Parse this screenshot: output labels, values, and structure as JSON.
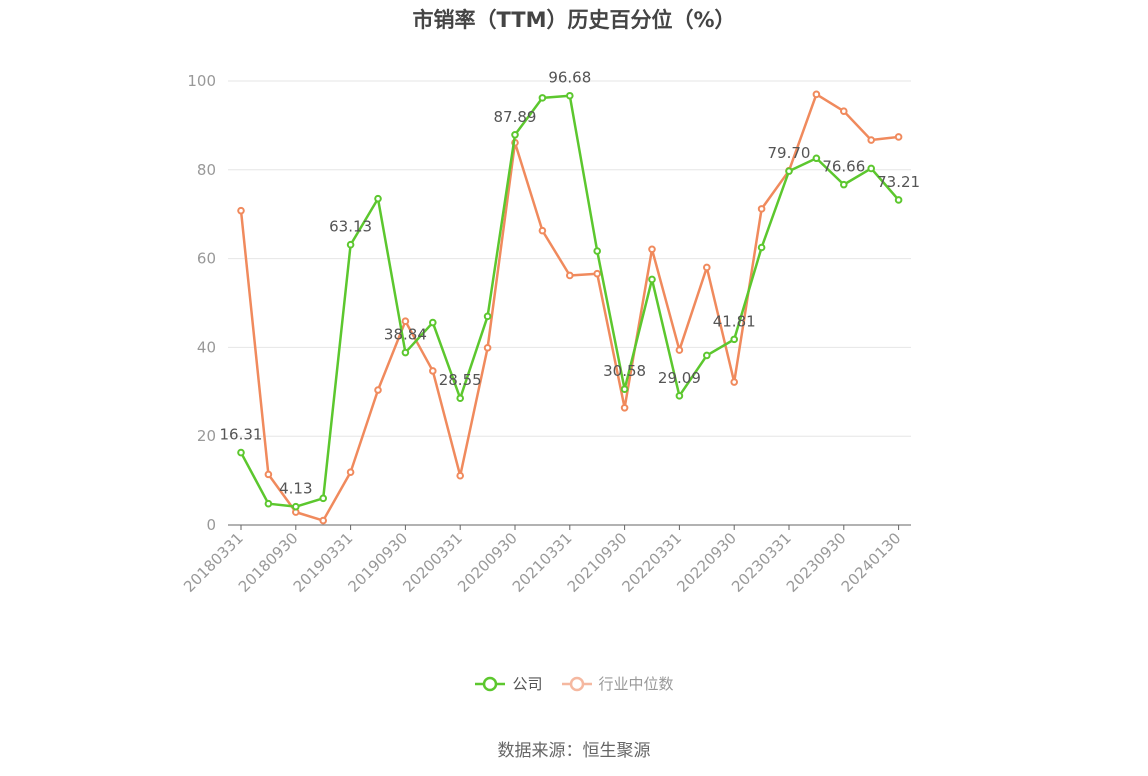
{
  "chart_data": {
    "type": "line",
    "title": "市销率（TTM）历史百分位（%）",
    "ylim": [
      0,
      100
    ],
    "yticks": [
      "0",
      "20",
      "40",
      "60",
      "80",
      "100"
    ],
    "xtick_labels": [
      "20180331",
      "20180930",
      "20190331",
      "20190930",
      "20200331",
      "20200930",
      "20210331",
      "20210930",
      "20220331",
      "20220930",
      "20230331",
      "20230930",
      "20240130"
    ],
    "series": [
      {
        "name": "公司",
        "color": "#5cc72e",
        "values": [
          16.31,
          4.8,
          4.13,
          6.0,
          63.13,
          73.5,
          38.84,
          45.6,
          28.55,
          47.0,
          87.89,
          96.2,
          96.68,
          61.7,
          30.58,
          55.3,
          29.09,
          38.2,
          41.81,
          62.5,
          79.7,
          82.6,
          76.66,
          80.3,
          73.21
        ]
      },
      {
        "name": "行业中位数",
        "color": "#f08a5d",
        "values": [
          70.8,
          11.4,
          2.9,
          1.0,
          11.9,
          30.4,
          45.9,
          34.7,
          11.1,
          39.9,
          86.1,
          66.3,
          56.2,
          56.6,
          26.4,
          62.1,
          39.4,
          58.0,
          32.2,
          71.2,
          79.8,
          97.0,
          93.2,
          86.7,
          87.4
        ]
      }
    ],
    "data_labels": [
      {
        "index": 0,
        "text": "16.31"
      },
      {
        "index": 2,
        "text": "4.13"
      },
      {
        "index": 4,
        "text": "63.13"
      },
      {
        "index": 6,
        "text": "38.84"
      },
      {
        "index": 8,
        "text": "28.55"
      },
      {
        "index": 10,
        "text": "87.89"
      },
      {
        "index": 12,
        "text": "96.68"
      },
      {
        "index": 14,
        "text": "30.58"
      },
      {
        "index": 16,
        "text": "29.09"
      },
      {
        "index": 18,
        "text": "41.81"
      },
      {
        "index": 20,
        "text": "79.70"
      },
      {
        "index": 22,
        "text": "76.66"
      },
      {
        "index": 24,
        "text": "73.21"
      }
    ],
    "grid": true,
    "legend_position": "bottom-center"
  },
  "legend": [
    {
      "label": "公司",
      "color": "#5cc72e"
    },
    {
      "label": "行业中位数",
      "color": "#f5b8a0"
    }
  ],
  "source": "数据来源：恒生聚源"
}
